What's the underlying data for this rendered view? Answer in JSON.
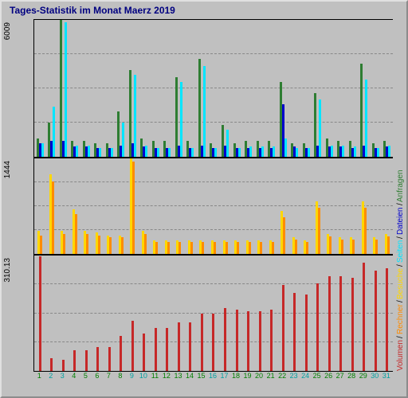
{
  "title": "Tages-Statistik im Monat Maerz 2019",
  "title_color": "#000080",
  "background_color": "#c0c0c0",
  "days": [
    "1",
    "2",
    "3",
    "4",
    "5",
    "6",
    "7",
    "8",
    "9",
    "10",
    "11",
    "12",
    "13",
    "14",
    "15",
    "16",
    "17",
    "18",
    "19",
    "20",
    "21",
    "22",
    "23",
    "24",
    "25",
    "26",
    "27",
    "28",
    "29",
    "30",
    "31"
  ],
  "day_colors": {
    "weekday": "#008000",
    "weekend": "#00a0a0"
  },
  "weekend_days": [
    2,
    3,
    9,
    10,
    16,
    17,
    23,
    24,
    30,
    31
  ],
  "panel_top": {
    "ymax": 6009,
    "ylabel": "6009",
    "gridlines": [
      0.25,
      0.5,
      0.75
    ],
    "series": [
      {
        "name": "Anfragen",
        "color": "#2e7d32",
        "values": [
          800,
          1500,
          6200,
          700,
          700,
          600,
          600,
          2000,
          3800,
          800,
          700,
          700,
          3500,
          700,
          4300,
          600,
          1400,
          600,
          700,
          700,
          700,
          3300,
          600,
          600,
          2800,
          800,
          700,
          700,
          4100,
          600,
          700
        ]
      },
      {
        "name": "Dateien",
        "color": "#0000cd",
        "values": [
          600,
          700,
          700,
          450,
          450,
          400,
          400,
          500,
          600,
          450,
          400,
          400,
          500,
          400,
          500,
          400,
          500,
          400,
          400,
          400,
          400,
          2300,
          450,
          400,
          500,
          450,
          450,
          400,
          500,
          400,
          450
        ]
      },
      {
        "name": "Seiten",
        "color": "#00e5ff",
        "values": [
          600,
          2200,
          5900,
          500,
          500,
          400,
          400,
          1500,
          3600,
          500,
          400,
          400,
          3300,
          400,
          4000,
          400,
          1200,
          400,
          450,
          450,
          450,
          800,
          400,
          400,
          2500,
          500,
          500,
          450,
          3400,
          400,
          500
        ]
      }
    ]
  },
  "panel_mid": {
    "ymax": 1444,
    "ylabel": "1444",
    "gridlines": [
      0.25,
      0.5,
      0.75
    ],
    "series": [
      {
        "name": "Besuche",
        "color": "#ffd700",
        "values": [
          350,
          1200,
          350,
          670,
          350,
          320,
          280,
          280,
          1500,
          350,
          200,
          200,
          200,
          200,
          200,
          200,
          200,
          200,
          200,
          200,
          200,
          650,
          250,
          200,
          800,
          300,
          250,
          250,
          800,
          250,
          300
        ]
      },
      {
        "name": "Rechner",
        "color": "#ff8c00",
        "values": [
          280,
          1100,
          300,
          600,
          300,
          280,
          250,
          250,
          1400,
          300,
          180,
          180,
          180,
          180,
          180,
          180,
          180,
          180,
          180,
          180,
          180,
          550,
          220,
          180,
          700,
          260,
          220,
          220,
          700,
          220,
          260
        ]
      }
    ]
  },
  "panel_bot": {
    "ymax": 310.13,
    "ylabel": "310.13",
    "gridlines": [
      0.25,
      0.5,
      0.75
    ],
    "series": [
      {
        "name": "Volumen",
        "color": "#c62828",
        "values": [
          308,
          35,
          30,
          55,
          55,
          65,
          65,
          95,
          135,
          100,
          115,
          115,
          130,
          130,
          155,
          155,
          170,
          165,
          160,
          160,
          165,
          230,
          210,
          205,
          235,
          255,
          255,
          250,
          290,
          270,
          275
        ]
      }
    ]
  },
  "legend": [
    {
      "label": "Volumen",
      "color": "#c62828"
    },
    {
      "label": "Rechner",
      "color": "#ff8c00"
    },
    {
      "label": "Besuche",
      "color": "#ffd700"
    },
    {
      "label": "Seiten",
      "color": "#00e5ff"
    },
    {
      "label": "Dateien",
      "color": "#0000cd"
    },
    {
      "label": "Anfragen",
      "color": "#2e7d32"
    }
  ]
}
